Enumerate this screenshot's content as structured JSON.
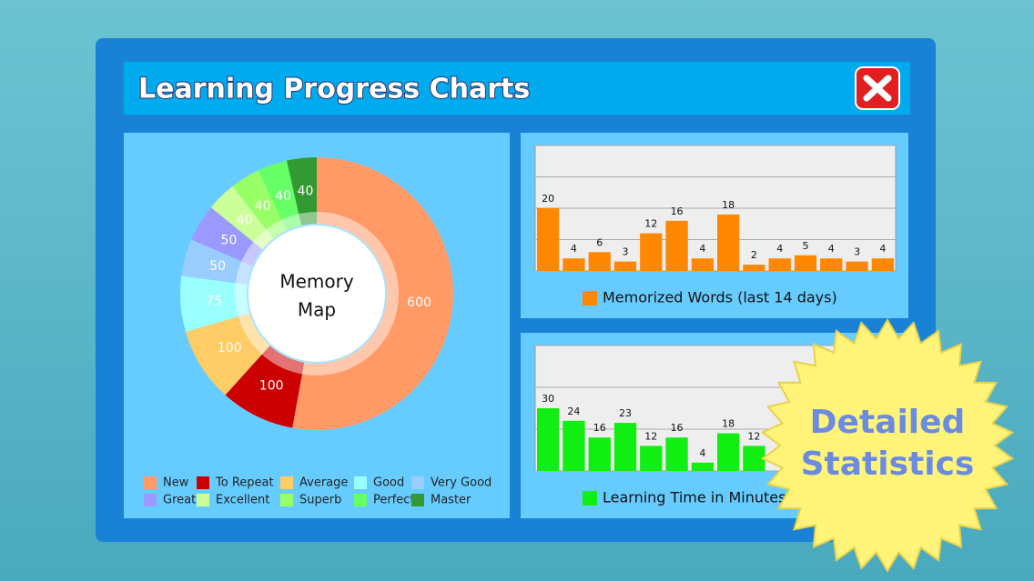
{
  "window": {
    "title": "Learning Progress Charts"
  },
  "chart_data": [
    {
      "type": "pie",
      "donut": true,
      "center_text": [
        "Memory",
        "Map"
      ],
      "categories": [
        "New",
        "To Repeat",
        "Average",
        "Good",
        "Very Good",
        "Great",
        "Excellent",
        "Superb",
        "Perfect",
        "Master"
      ],
      "values": [
        600,
        100,
        100,
        75,
        50,
        50,
        40,
        40,
        40,
        40
      ],
      "colors": [
        "#ff9966",
        "#cc0000",
        "#ffcc66",
        "#99ffff",
        "#99ccff",
        "#9999ff",
        "#ccff99",
        "#99ff66",
        "#66ff66",
        "#339933"
      ]
    },
    {
      "type": "bar",
      "series": [
        {
          "name": "Memorized Words (last 14 days)",
          "color": "#ff8800",
          "values": [
            20,
            4,
            6,
            3,
            12,
            16,
            4,
            18,
            2,
            4,
            5,
            4,
            3,
            4
          ]
        }
      ],
      "ylim": [
        0,
        40
      ],
      "yticks": [
        0,
        10,
        20,
        30,
        40
      ],
      "grid": true
    },
    {
      "type": "bar",
      "series": [
        {
          "name": "Learning Time in Minutes",
          "color": "#11ee11",
          "values": [
            30,
            24,
            16,
            23,
            12,
            16,
            4,
            18,
            12
          ]
        }
      ],
      "ylim": [
        0,
        60
      ],
      "yticks": [
        0,
        20,
        40,
        60
      ],
      "grid": true
    }
  ],
  "badge": {
    "lines": [
      "Detailed",
      "Statistics"
    ]
  }
}
